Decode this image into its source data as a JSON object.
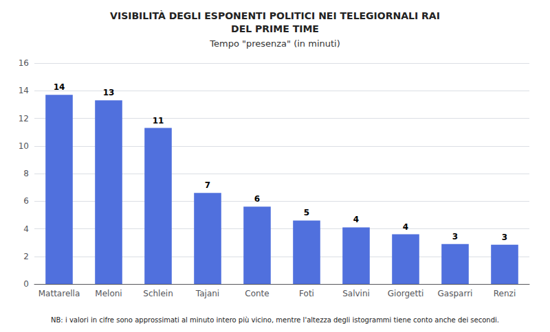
{
  "chart_data": {
    "type": "bar",
    "title": "VISIBILITÀ DEGLI ESPONENTI POLITICI NEI TELEGIORNALI RAI\nDEL PRIME TIME",
    "subtitle": "Tempo \"presenza\" (in minuti)",
    "annotations": [
      "NB: i valori in cifre sono approssimati al minuto intero più vicino, mentre l'altezza degli istogrammi tiene conto anche dei secondi."
    ],
    "categories": [
      "Mattarella",
      "Meloni",
      "Schlein",
      "Tajani",
      "Conte",
      "Foti",
      "Salvini",
      "Giorgetti",
      "Gasparri",
      "Renzi"
    ],
    "values": [
      13.7,
      13.3,
      11.3,
      6.6,
      5.6,
      4.6,
      4.1,
      3.6,
      2.9,
      2.85
    ],
    "value_labels": [
      "14",
      "13",
      "11",
      "7",
      "6",
      "5",
      "4",
      "4",
      "3",
      "3"
    ],
    "data_labels": true,
    "ylim": [
      0,
      16
    ],
    "yticks": [
      0,
      2,
      4,
      6,
      8,
      10,
      12,
      14,
      16
    ],
    "grid": true
  }
}
